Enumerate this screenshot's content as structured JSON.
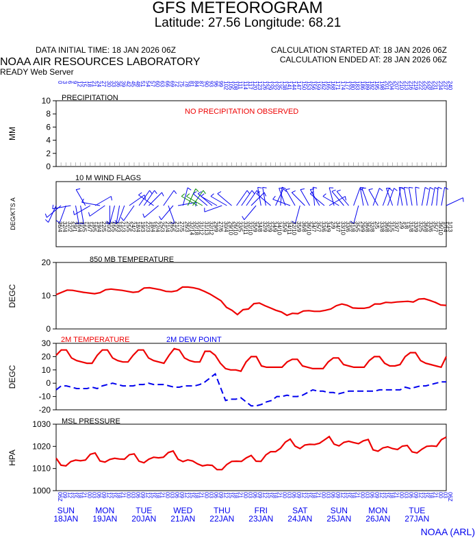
{
  "header": {
    "title": "GFS METEOROGRAM",
    "subtitle": "Latitude: 27.56 Longitude:  68.21",
    "data_initial_time": "DATA INITIAL TIME: 18 JAN 2026 06Z",
    "calc_started": "CALCULATION STARTED AT: 18 JAN 2026 06Z",
    "calc_ended": "CALCULATION ENDED AT: 28 JAN 2026 06Z",
    "lab": "NOAA AIR RESOURCES LABORATORY",
    "server": "READY Web Server"
  },
  "footer": {
    "credit": "NOAA (ARL)"
  },
  "colors": {
    "red": "#ee0000",
    "blue": "#0000ee",
    "green": "#008800"
  },
  "chart_data": [
    {
      "type": "line",
      "panel": "precipitation",
      "title": "PRECIPITATION",
      "ylabel": "MM",
      "ylim": [
        0,
        10
      ],
      "yticks": [
        "0",
        "2",
        "4",
        "6",
        "8",
        "10"
      ],
      "annotation": "NO PRECIPITATION OBSERVED",
      "values": []
    },
    {
      "type": "wind-flags",
      "panel": "wind",
      "title": "10 M  WIND FLAGS",
      "ylabel": "DEG/KTS  A"
    },
    {
      "type": "line",
      "panel": "t850",
      "title": "850 MB  TEMPERATURE",
      "ylabel": "DEGC",
      "ylim": [
        0,
        20
      ],
      "yticks": [
        "0",
        "10",
        "20"
      ],
      "series": [
        {
          "values": [
            10.3,
            11.0,
            11.7,
            11.6,
            11.3,
            11.0,
            10.8,
            10.6,
            10.9,
            11.8,
            12.0,
            11.8,
            11.6,
            11.3,
            11.0,
            11.2,
            12.3,
            12.4,
            12.1,
            11.8,
            11.3,
            11.2,
            11.5,
            12.6,
            12.6,
            12.4,
            12.0,
            11.3,
            10.5,
            9.5,
            8.5,
            6.5,
            5.6,
            4.3,
            5.8,
            6.0,
            7.6,
            7.8,
            7.0,
            6.3,
            5.6,
            5.1,
            4.1,
            4.7,
            4.6,
            5.4,
            5.5,
            5.3,
            5.3,
            5.6,
            6.0,
            7.0,
            7.5,
            7.1,
            6.3,
            6.2,
            6.2,
            6.5,
            7.5,
            7.5,
            8.0,
            7.9,
            8.1,
            8.2,
            8.3,
            8.1,
            9.0,
            9.1,
            8.6,
            8.0,
            7.2,
            7.1
          ]
        }
      ]
    },
    {
      "type": "line",
      "panel": "t2m",
      "ylabel": "DEGC",
      "ylim": [
        -20,
        30
      ],
      "yticks": [
        "-20",
        "-10",
        "0",
        "10",
        "20",
        "30"
      ],
      "series": [
        {
          "name": "2M TEMPERATURE",
          "values": [
            21,
            25,
            25,
            19,
            17,
            16,
            15,
            15,
            21,
            25,
            25,
            19,
            17,
            16,
            16,
            21,
            25,
            25,
            19,
            17,
            16,
            15,
            21,
            26,
            25,
            19,
            17,
            16,
            16,
            24,
            24,
            21,
            15,
            11,
            10,
            10,
            9,
            16,
            20,
            20,
            13,
            12,
            12,
            12,
            12,
            16,
            18,
            18,
            13,
            12,
            11,
            11,
            11,
            16,
            19,
            19,
            14,
            13,
            12,
            12,
            12,
            17,
            20,
            20,
            15,
            13,
            13,
            14,
            20,
            23,
            23,
            17,
            15,
            14,
            13,
            12,
            20
          ]
        },
        {
          "name": "2M  DEW POINT",
          "values": [
            -5,
            -2,
            -2,
            -3,
            -4,
            -4,
            -4,
            -3,
            -4,
            -2,
            -1,
            0,
            -1,
            -2,
            -2,
            -2,
            -1,
            -1,
            0,
            -1,
            -1,
            -1,
            -2,
            -3,
            -3,
            -2,
            -2,
            -2,
            -1,
            1,
            4,
            7,
            -3,
            -13,
            -12,
            -12,
            -11,
            -14,
            -17,
            -17,
            -16,
            -14,
            -13,
            -10,
            -10,
            -9,
            -10,
            -10,
            -9,
            -7,
            -5,
            -6,
            -6,
            -7,
            -7,
            -8,
            -7,
            -6,
            -6,
            -6,
            -6,
            -6,
            -6,
            -5,
            -5,
            -5,
            -5,
            -5,
            -3,
            -4,
            -3,
            -2,
            -2,
            -1,
            0,
            1,
            1
          ]
        }
      ]
    },
    {
      "type": "line",
      "panel": "mslp",
      "title": "MSL PRESSURE",
      "ylabel": "HPA",
      "ylim": [
        1000,
        1030
      ],
      "yticks": [
        "1000",
        "1010",
        "1020",
        "1030"
      ],
      "series": [
        {
          "values": [
            1014.7,
            1011.5,
            1011.2,
            1013.1,
            1013.8,
            1013.5,
            1013.8,
            1016.4,
            1017.0,
            1013.4,
            1012.9,
            1014.1,
            1014.6,
            1014.3,
            1014.2,
            1016.2,
            1016.6,
            1013.3,
            1012.6,
            1014.2,
            1015.1,
            1014.8,
            1015.1,
            1017.2,
            1017.9,
            1014.2,
            1013.1,
            1013.9,
            1013.4,
            1012.1,
            1011.2,
            1011.6,
            1011.4,
            1009.5,
            1009.5,
            1011.8,
            1013.2,
            1013.3,
            1013.2,
            1014.8,
            1015.9,
            1013.3,
            1013.2,
            1016.1,
            1017.6,
            1017.6,
            1019.1,
            1021.9,
            1023.3,
            1020.1,
            1019.0,
            1020.6,
            1020.9,
            1020.8,
            1021.4,
            1022.9,
            1024.4,
            1021.0,
            1020.2,
            1021.8,
            1022.3,
            1021.7,
            1021.2,
            1022.5,
            1023.1,
            1018.4,
            1017.8,
            1019.3,
            1019.8,
            1019.0,
            1018.6,
            1020.1,
            1020.4,
            1017.5,
            1017.0,
            1018.7,
            1020.0,
            1020.2,
            1020.0,
            1023.0,
            1024.2
          ]
        }
      ]
    }
  ],
  "time_axis": {
    "top_hours": [
      "0",
      "3",
      "6",
      "9",
      "12",
      "15",
      "18",
      "21",
      "24",
      "27",
      "30",
      "33",
      "36",
      "39",
      "42",
      "45",
      "48",
      "51",
      "54",
      "57",
      "60",
      "63",
      "66",
      "69",
      "72",
      "75",
      "78",
      "81",
      "84",
      "87",
      "90",
      "93",
      "96",
      "99",
      "102",
      "105",
      "108",
      "111",
      "114",
      "117",
      "120",
      "123",
      "126",
      "129",
      "132",
      "135",
      "138",
      "141",
      "144",
      "147",
      "150",
      "153",
      "156",
      "159",
      "162",
      "165",
      "168",
      "171",
      "174",
      "177",
      "180",
      "183",
      "186",
      "189",
      "192",
      "195",
      "198",
      "201",
      "204",
      "207",
      "210",
      "213",
      "216",
      "219",
      "222",
      "225",
      "228",
      "231",
      "234",
      "237",
      "240"
    ],
    "bottom_hours": [
      "06Z",
      "09",
      "12",
      "15",
      "18",
      "21",
      "00",
      "03",
      "06",
      "09",
      "12",
      "15",
      "18",
      "21",
      "00",
      "03",
      "06",
      "09",
      "12",
      "15",
      "18",
      "21",
      "00",
      "03",
      "06",
      "09",
      "12",
      "15",
      "18",
      "21",
      "00",
      "03",
      "06",
      "09",
      "12",
      "15",
      "18",
      "21",
      "00",
      "03",
      "06",
      "09",
      "12",
      "15",
      "18",
      "21",
      "00",
      "03",
      "06",
      "09",
      "12",
      "15",
      "18",
      "21",
      "00",
      "03",
      "06",
      "09",
      "12",
      "15",
      "18",
      "21",
      "00",
      "03",
      "06",
      "09",
      "12",
      "15",
      "18",
      "21",
      "00",
      "03",
      "06",
      "09",
      "12",
      "15",
      "18",
      "21",
      "00",
      "03",
      "06Z"
    ],
    "days": [
      {
        "dow": "SUN",
        "date": "18JAN"
      },
      {
        "dow": "MON",
        "date": "19JAN"
      },
      {
        "dow": "TUE",
        "date": "20JAN"
      },
      {
        "dow": "WED",
        "date": "21JAN"
      },
      {
        "dow": "THU",
        "date": "22JAN"
      },
      {
        "dow": "FRI",
        "date": "23JAN"
      },
      {
        "dow": "SAT",
        "date": "24JAN"
      },
      {
        "dow": "SUN",
        "date": "25JAN"
      },
      {
        "dow": "MON",
        "date": "26JAN"
      },
      {
        "dow": "TUE",
        "date": "27JAN"
      }
    ]
  },
  "wind_flags": {
    "codes": [
      "36/4",
      "32/4",
      "32/2",
      "29/1",
      "16/4",
      "16/5",
      "16/7",
      "18/5",
      "19/4",
      "22/5",
      "20/3",
      "16/5",
      "18/3",
      "21/3",
      "25/5",
      "24/2",
      "18/4",
      "19/3",
      "22/3",
      "18/4",
      "22/4",
      "25/3",
      "21/4",
      "26/5",
      "21/3",
      "27/5",
      "26/3",
      "32/14",
      "32/18",
      "31/12",
      "31/13",
      "32/12",
      "29/9",
      "27/6",
      "30/4",
      "29/10",
      "26/10",
      "33/5",
      "33/11",
      "32/10",
      "35/9",
      "34/8",
      "32/9",
      "32/9",
      "34/9",
      "34/10",
      "35/9",
      "34/11",
      "32/10",
      "35/9",
      "36/8",
      "36/10",
      "34/7",
      "35/7",
      "33/6",
      "34/9",
      "2/9",
      "34/7",
      "33/10",
      "33/6",
      "31/8",
      "35/5",
      "29/9",
      "36/8",
      "32/8",
      "2/5",
      "33/8",
      "36/8",
      "31/5",
      "33/7",
      "2/9",
      "1/8",
      "31/8",
      "33/9",
      "32/5",
      "36/8",
      "33/6",
      "35/7",
      "36/10",
      "1/14",
      "1/13"
    ],
    "dirs": [
      205,
      230,
      200,
      260,
      170,
      170,
      330,
      240,
      60,
      280,
      235,
      180,
      195,
      190,
      200,
      55,
      215,
      35,
      35,
      45,
      305,
      230,
      35,
      160,
      220,
      80,
      15,
      25,
      35,
      300,
      300,
      310,
      310,
      300,
      250,
      300,
      310,
      35,
      35,
      35,
      45,
      220,
      350,
      350,
      310,
      25,
      5,
      340,
      290,
      330,
      195,
      315,
      330,
      355,
      330,
      310,
      60,
      345,
      300,
      320,
      320,
      20,
      195,
      350,
      340,
      20,
      330,
      20,
      20,
      340,
      10,
      350,
      350,
      350,
      355,
      10,
      10,
      10,
      5,
      10,
      65
    ]
  }
}
